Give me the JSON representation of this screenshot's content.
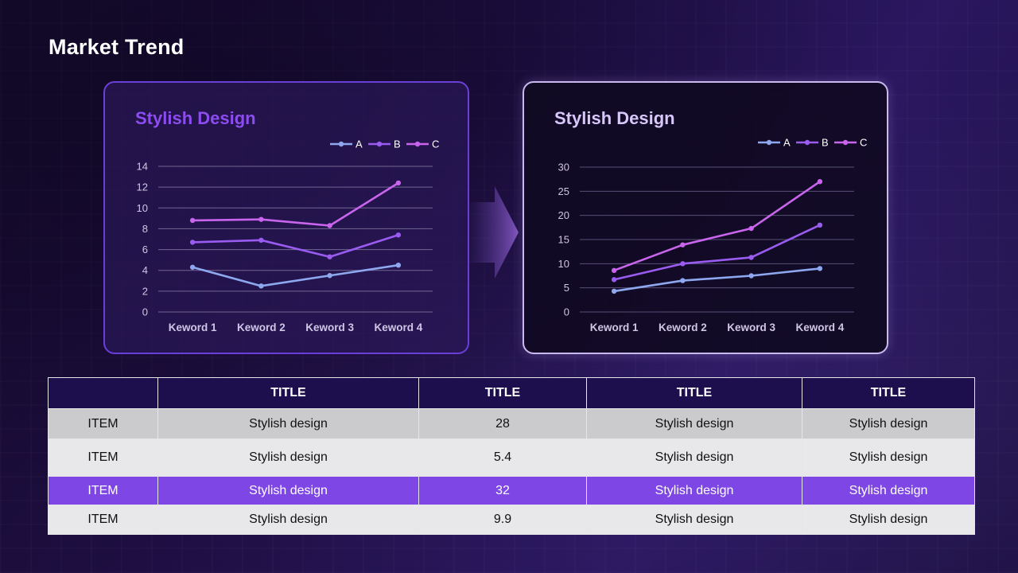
{
  "title": "Market Trend",
  "colors": {
    "series_A": "#8ea8f0",
    "series_B": "#9a5cf0",
    "series_C": "#c965ec",
    "accent_purple": "#7f46e6",
    "table_header": "#1d0f4d"
  },
  "chart_data": [
    {
      "type": "line",
      "title": "Stylish Design",
      "categories": [
        "Keword 1",
        "Keword 2",
        "Keword 3",
        "Keword 4"
      ],
      "ylim": [
        0,
        14
      ],
      "yticks": [
        0,
        2,
        4,
        6,
        8,
        10,
        12,
        14
      ],
      "grid": true,
      "legend_position": "top-right",
      "series": [
        {
          "name": "A",
          "values": [
            4.3,
            2.5,
            3.5,
            4.5
          ]
        },
        {
          "name": "B",
          "values": [
            6.7,
            6.9,
            5.3,
            7.4
          ]
        },
        {
          "name": "C",
          "values": [
            8.8,
            8.9,
            8.3,
            12.4
          ]
        }
      ]
    },
    {
      "type": "line",
      "title": "Stylish Design",
      "categories": [
        "Keword 1",
        "Keword 2",
        "Keword 3",
        "Keword 4"
      ],
      "ylim": [
        0,
        30
      ],
      "yticks": [
        0,
        5,
        10,
        15,
        20,
        25,
        30
      ],
      "grid": true,
      "legend_position": "top-right",
      "series": [
        {
          "name": "A",
          "values": [
            4.3,
            6.5,
            7.5,
            9.0
          ]
        },
        {
          "name": "B",
          "values": [
            6.7,
            10.0,
            11.3,
            18.0
          ]
        },
        {
          "name": "C",
          "values": [
            8.6,
            13.9,
            17.3,
            27.0
          ]
        }
      ]
    }
  ],
  "table": {
    "headers": [
      "",
      "TITLE",
      "TITLE",
      "TITLE",
      "TITLE"
    ],
    "rows": [
      [
        "ITEM",
        "Stylish design",
        "28",
        "Stylish design",
        "Stylish design"
      ],
      [
        "ITEM",
        "Stylish design",
        "5.4",
        "Stylish design",
        "Stylish design"
      ],
      [
        "ITEM",
        "Stylish design",
        "32",
        "Stylish design",
        "Stylish design"
      ],
      [
        "ITEM",
        "Stylish design",
        "9.9",
        "Stylish design",
        "Stylish design"
      ]
    ]
  }
}
